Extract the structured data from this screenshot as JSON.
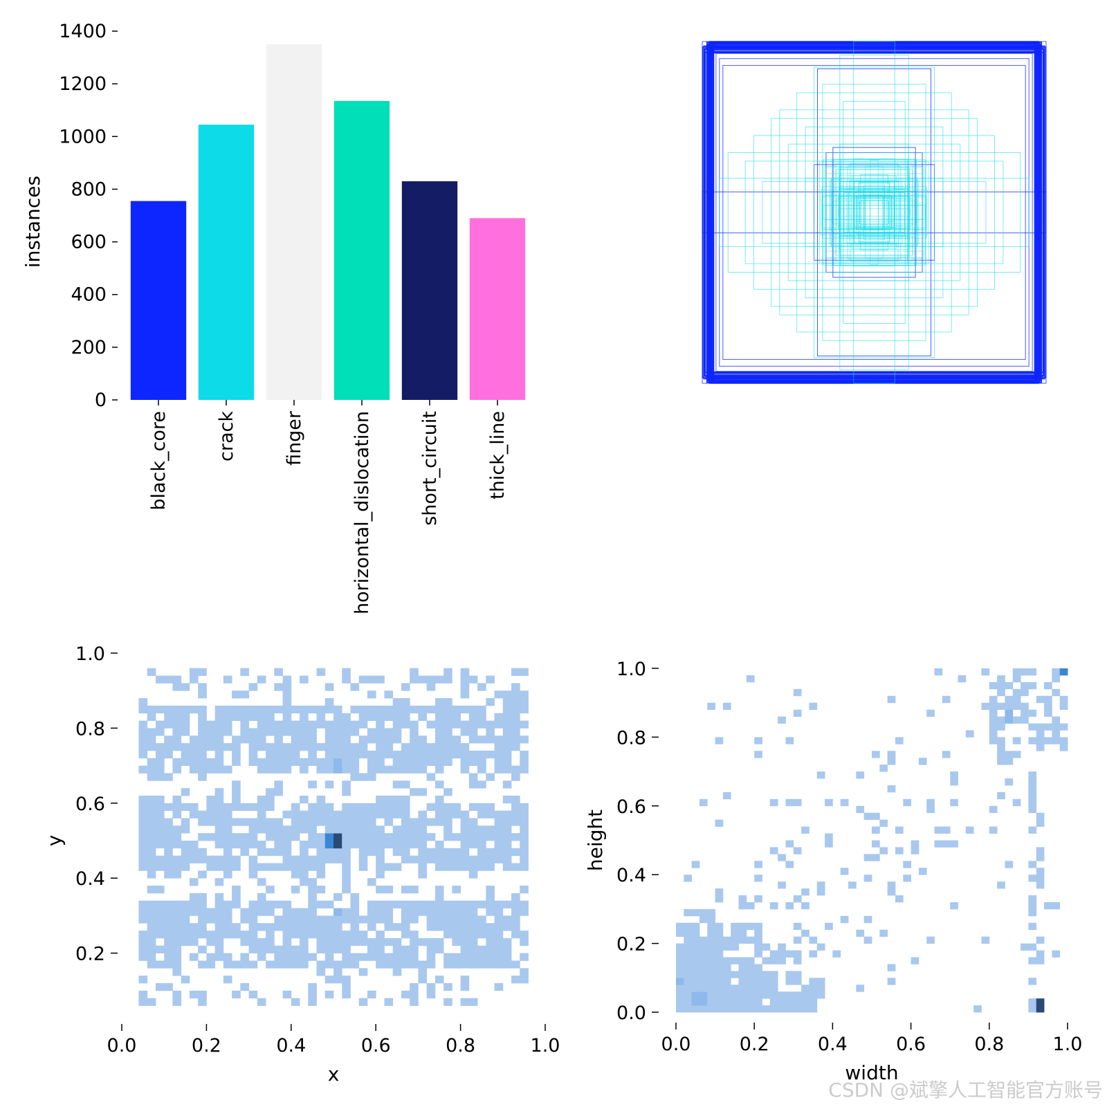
{
  "watermark": "CSDN @斌擎人工智能官方账号",
  "chart_data": [
    {
      "type": "bar",
      "ylabel": "instances",
      "ylim": [
        0,
        1400
      ],
      "yticks": [
        0,
        200,
        400,
        600,
        800,
        1000,
        1200,
        1400
      ],
      "categories": [
        "black_core",
        "crack",
        "finger",
        "horizontal_dislocation",
        "short_circuit",
        "thick_line"
      ],
      "values": [
        755,
        1045,
        1350,
        1135,
        830,
        690
      ],
      "colors": [
        "#0d26ff",
        "#0ddbe8",
        "#f2f2f2",
        "#00dfb8",
        "#131c64",
        "#ff6fde"
      ]
    },
    {
      "type": "scatter",
      "description_kind": "bounding-box overlay (normalized box outlines centered)",
      "xlim": [
        0,
        1
      ],
      "ylim": [
        0,
        1
      ],
      "colors": [
        "#0d26ff",
        "#0ddbe8"
      ],
      "boxes": [
        {
          "w": 1.0,
          "h": 1.0,
          "class": 0
        },
        {
          "w": 0.98,
          "h": 0.97,
          "class": 0
        },
        {
          "w": 0.96,
          "h": 0.99,
          "class": 0
        },
        {
          "w": 0.94,
          "h": 0.95,
          "class": 0
        },
        {
          "w": 0.92,
          "h": 0.93,
          "class": 0
        },
        {
          "w": 0.9,
          "h": 0.9,
          "class": 0
        },
        {
          "w": 0.88,
          "h": 0.86,
          "class": 0
        },
        {
          "w": 0.33,
          "h": 0.84,
          "class": 0
        },
        {
          "w": 0.28,
          "h": 0.35,
          "class": 0
        },
        {
          "w": 0.35,
          "h": 0.28,
          "class": 0
        },
        {
          "w": 0.24,
          "h": 0.38,
          "class": 0
        },
        {
          "w": 1.0,
          "h": 0.12,
          "class": 0
        },
        {
          "w": 0.12,
          "h": 1.0,
          "class": 1
        },
        {
          "w": 0.85,
          "h": 0.35,
          "class": 1
        },
        {
          "w": 0.35,
          "h": 0.85,
          "class": 1
        },
        {
          "w": 0.7,
          "h": 0.45,
          "class": 1
        },
        {
          "w": 0.45,
          "h": 0.7,
          "class": 1
        },
        {
          "w": 0.6,
          "h": 0.55,
          "class": 1
        },
        {
          "w": 0.55,
          "h": 0.6,
          "class": 1
        },
        {
          "w": 0.5,
          "h": 0.4,
          "class": 1
        },
        {
          "w": 0.4,
          "h": 0.5,
          "class": 1
        },
        {
          "w": 0.3,
          "h": 0.3,
          "class": 1
        },
        {
          "w": 0.25,
          "h": 0.2,
          "class": 1
        },
        {
          "w": 0.2,
          "h": 0.25,
          "class": 1
        },
        {
          "w": 0.18,
          "h": 0.18,
          "class": 1
        },
        {
          "w": 0.15,
          "h": 0.12,
          "class": 1
        },
        {
          "w": 0.12,
          "h": 0.15,
          "class": 1
        },
        {
          "w": 0.1,
          "h": 0.1,
          "class": 1
        },
        {
          "w": 0.08,
          "h": 0.22,
          "class": 1
        },
        {
          "w": 0.22,
          "h": 0.08,
          "class": 1
        },
        {
          "w": 0.65,
          "h": 0.18,
          "class": 1
        },
        {
          "w": 0.18,
          "h": 0.65,
          "class": 1
        },
        {
          "w": 0.75,
          "h": 0.3,
          "class": 1
        },
        {
          "w": 0.3,
          "h": 0.75,
          "class": 1
        },
        {
          "w": 0.06,
          "h": 0.16,
          "class": 1
        },
        {
          "w": 0.05,
          "h": 0.1,
          "class": 1
        },
        {
          "w": 0.9,
          "h": 0.2,
          "class": 1
        },
        {
          "w": 0.2,
          "h": 0.92,
          "class": 1
        },
        {
          "w": 0.4,
          "h": 0.2,
          "class": 1
        },
        {
          "w": 0.2,
          "h": 0.4,
          "class": 1
        }
      ]
    },
    {
      "type": "heatmap",
      "xlabel": "x",
      "ylabel": "y",
      "xlim": [
        0,
        1
      ],
      "ylim": [
        0,
        1
      ],
      "xticks": [
        0.0,
        0.2,
        0.4,
        0.6,
        0.8,
        1.0
      ],
      "yticks": [
        0.2,
        0.4,
        0.6,
        0.8,
        1.0
      ],
      "bins": 50,
      "occupied_x_range": [
        0.04,
        0.96
      ],
      "occupied_y_range": [
        0.06,
        0.96
      ],
      "dense_bands_y": [
        [
          0.17,
          0.33
        ],
        [
          0.42,
          0.6
        ],
        [
          0.69,
          0.86
        ]
      ],
      "hotspots": [
        {
          "x": 0.51,
          "y": 0.5,
          "level": 1.0
        },
        {
          "x": 0.49,
          "y": 0.5,
          "level": 0.7
        },
        {
          "x": 0.51,
          "y": 0.7,
          "level": 0.6
        },
        {
          "x": 0.51,
          "y": 0.31,
          "level": 0.6
        }
      ]
    },
    {
      "type": "heatmap",
      "xlabel": "width",
      "ylabel": "height",
      "xlim": [
        0,
        1
      ],
      "ylim": [
        0,
        1
      ],
      "xticks": [
        0.0,
        0.2,
        0.4,
        0.6,
        0.8,
        1.0
      ],
      "yticks": [
        0.0,
        0.2,
        0.4,
        0.6,
        0.8,
        1.0
      ],
      "bins": 50,
      "dense_region": {
        "width": [
          0.0,
          0.38
        ],
        "height": [
          0.0,
          0.25
        ]
      },
      "upper_cluster": {
        "width": [
          0.8,
          1.0
        ],
        "height": [
          0.78,
          1.0
        ]
      },
      "hotspots": [
        {
          "width": 0.93,
          "height": 0.02,
          "level": 1.0
        },
        {
          "width": 0.99,
          "height": 0.99,
          "level": 0.7
        },
        {
          "width": 0.85,
          "height": 0.86,
          "level": 0.55
        },
        {
          "width": 0.06,
          "height": 0.04,
          "level": 0.5
        },
        {
          "width": 0.01,
          "height": 0.09,
          "level": 0.45
        }
      ]
    }
  ]
}
